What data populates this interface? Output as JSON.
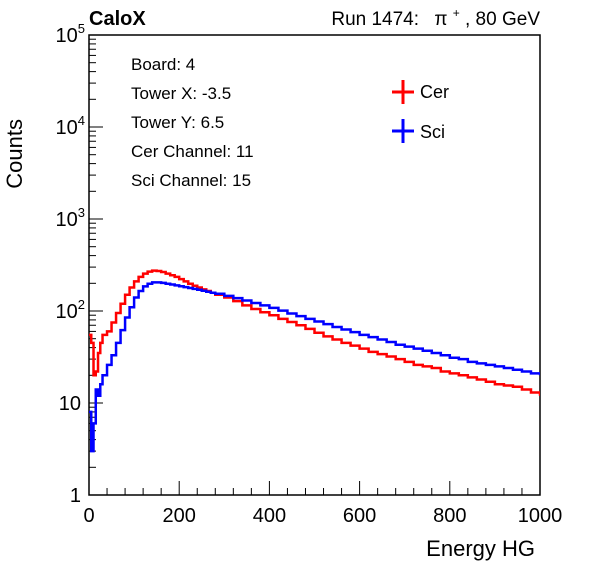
{
  "header": {
    "experiment": "CaloX",
    "run_prefix": "Run 1474:",
    "particle": "π",
    "particle_charge": "+",
    "energy": ", 80 GeV"
  },
  "info_box": {
    "lines": [
      "Board: 4",
      "Tower X: -3.5",
      "Tower Y: 6.5",
      "Cer Channel: 11",
      "Sci Channel: 15"
    ]
  },
  "chart_data": {
    "type": "line",
    "xlabel": "Energy HG",
    "ylabel": "Counts",
    "xlim": [
      0,
      1000
    ],
    "ylim": [
      1,
      100000
    ],
    "y_scale": "log",
    "grid": false,
    "legend_position": "top-right",
    "x_ticks": [
      {
        "value": 0,
        "label": "0"
      },
      {
        "value": 200,
        "label": "200"
      },
      {
        "value": 400,
        "label": "400"
      },
      {
        "value": 600,
        "label": "600"
      },
      {
        "value": 800,
        "label": "800"
      },
      {
        "value": 1000,
        "label": "1000"
      }
    ],
    "y_ticks": [
      {
        "value": 1,
        "base": "1",
        "exp": ""
      },
      {
        "value": 10,
        "base": "10",
        "exp": ""
      },
      {
        "value": 100,
        "base": "10",
        "exp": "2"
      },
      {
        "value": 1000,
        "base": "10",
        "exp": "3"
      },
      {
        "value": 10000,
        "base": "10",
        "exp": "4"
      },
      {
        "value": 100000,
        "base": "10",
        "exp": "5"
      }
    ],
    "series": [
      {
        "name": "Cer",
        "color": "#ff0000",
        "points": [
          [
            0,
            55
          ],
          [
            5,
            45
          ],
          [
            10,
            20
          ],
          [
            15,
            22
          ],
          [
            20,
            35
          ],
          [
            25,
            45
          ],
          [
            30,
            55
          ],
          [
            40,
            60
          ],
          [
            50,
            75
          ],
          [
            60,
            95
          ],
          [
            70,
            120
          ],
          [
            80,
            150
          ],
          [
            90,
            180
          ],
          [
            100,
            210
          ],
          [
            110,
            235
          ],
          [
            120,
            255
          ],
          [
            130,
            268
          ],
          [
            140,
            275
          ],
          [
            150,
            272
          ],
          [
            160,
            265
          ],
          [
            170,
            255
          ],
          [
            180,
            245
          ],
          [
            190,
            235
          ],
          [
            200,
            222
          ],
          [
            210,
            210
          ],
          [
            220,
            198
          ],
          [
            230,
            188
          ],
          [
            240,
            180
          ],
          [
            250,
            172
          ],
          [
            260,
            165
          ],
          [
            270,
            158
          ],
          [
            280,
            150
          ],
          [
            300,
            140
          ],
          [
            320,
            128
          ],
          [
            340,
            115
          ],
          [
            360,
            105
          ],
          [
            380,
            97
          ],
          [
            400,
            90
          ],
          [
            420,
            82
          ],
          [
            440,
            76
          ],
          [
            460,
            70
          ],
          [
            480,
            64
          ],
          [
            500,
            58
          ],
          [
            520,
            53
          ],
          [
            540,
            49
          ],
          [
            560,
            45
          ],
          [
            580,
            42
          ],
          [
            600,
            39
          ],
          [
            620,
            36
          ],
          [
            640,
            34
          ],
          [
            660,
            32
          ],
          [
            680,
            30
          ],
          [
            700,
            28
          ],
          [
            720,
            26
          ],
          [
            740,
            25
          ],
          [
            760,
            24
          ],
          [
            780,
            22
          ],
          [
            800,
            21
          ],
          [
            820,
            20
          ],
          [
            840,
            19
          ],
          [
            860,
            18
          ],
          [
            880,
            17
          ],
          [
            900,
            16
          ],
          [
            920,
            15.5
          ],
          [
            940,
            15
          ],
          [
            960,
            14
          ],
          [
            980,
            13
          ],
          [
            1000,
            12
          ]
        ]
      },
      {
        "name": "Sci",
        "color": "#0000ff",
        "points": [
          [
            0,
            8
          ],
          [
            5,
            3
          ],
          [
            10,
            6
          ],
          [
            15,
            14
          ],
          [
            20,
            12
          ],
          [
            25,
            16
          ],
          [
            30,
            20
          ],
          [
            40,
            26
          ],
          [
            50,
            33
          ],
          [
            60,
            45
          ],
          [
            70,
            62
          ],
          [
            80,
            85
          ],
          [
            90,
            110
          ],
          [
            100,
            140
          ],
          [
            110,
            165
          ],
          [
            120,
            185
          ],
          [
            130,
            198
          ],
          [
            140,
            205
          ],
          [
            150,
            205
          ],
          [
            160,
            202
          ],
          [
            170,
            198
          ],
          [
            180,
            194
          ],
          [
            190,
            190
          ],
          [
            200,
            186
          ],
          [
            210,
            182
          ],
          [
            220,
            178
          ],
          [
            230,
            174
          ],
          [
            240,
            170
          ],
          [
            250,
            166
          ],
          [
            260,
            162
          ],
          [
            270,
            158
          ],
          [
            280,
            154
          ],
          [
            300,
            146
          ],
          [
            320,
            138
          ],
          [
            340,
            130
          ],
          [
            360,
            122
          ],
          [
            380,
            115
          ],
          [
            400,
            108
          ],
          [
            420,
            101
          ],
          [
            440,
            94
          ],
          [
            460,
            88
          ],
          [
            480,
            82
          ],
          [
            500,
            77
          ],
          [
            520,
            72
          ],
          [
            540,
            67
          ],
          [
            560,
            63
          ],
          [
            580,
            59
          ],
          [
            600,
            55
          ],
          [
            620,
            52
          ],
          [
            640,
            49
          ],
          [
            660,
            46
          ],
          [
            680,
            43
          ],
          [
            700,
            41
          ],
          [
            720,
            39
          ],
          [
            740,
            37
          ],
          [
            760,
            35
          ],
          [
            780,
            33
          ],
          [
            800,
            31
          ],
          [
            820,
            30
          ],
          [
            840,
            28
          ],
          [
            860,
            27
          ],
          [
            880,
            26
          ],
          [
            900,
            25
          ],
          [
            920,
            24
          ],
          [
            940,
            23
          ],
          [
            960,
            22
          ],
          [
            980,
            21
          ],
          [
            1000,
            20
          ]
        ]
      }
    ]
  }
}
